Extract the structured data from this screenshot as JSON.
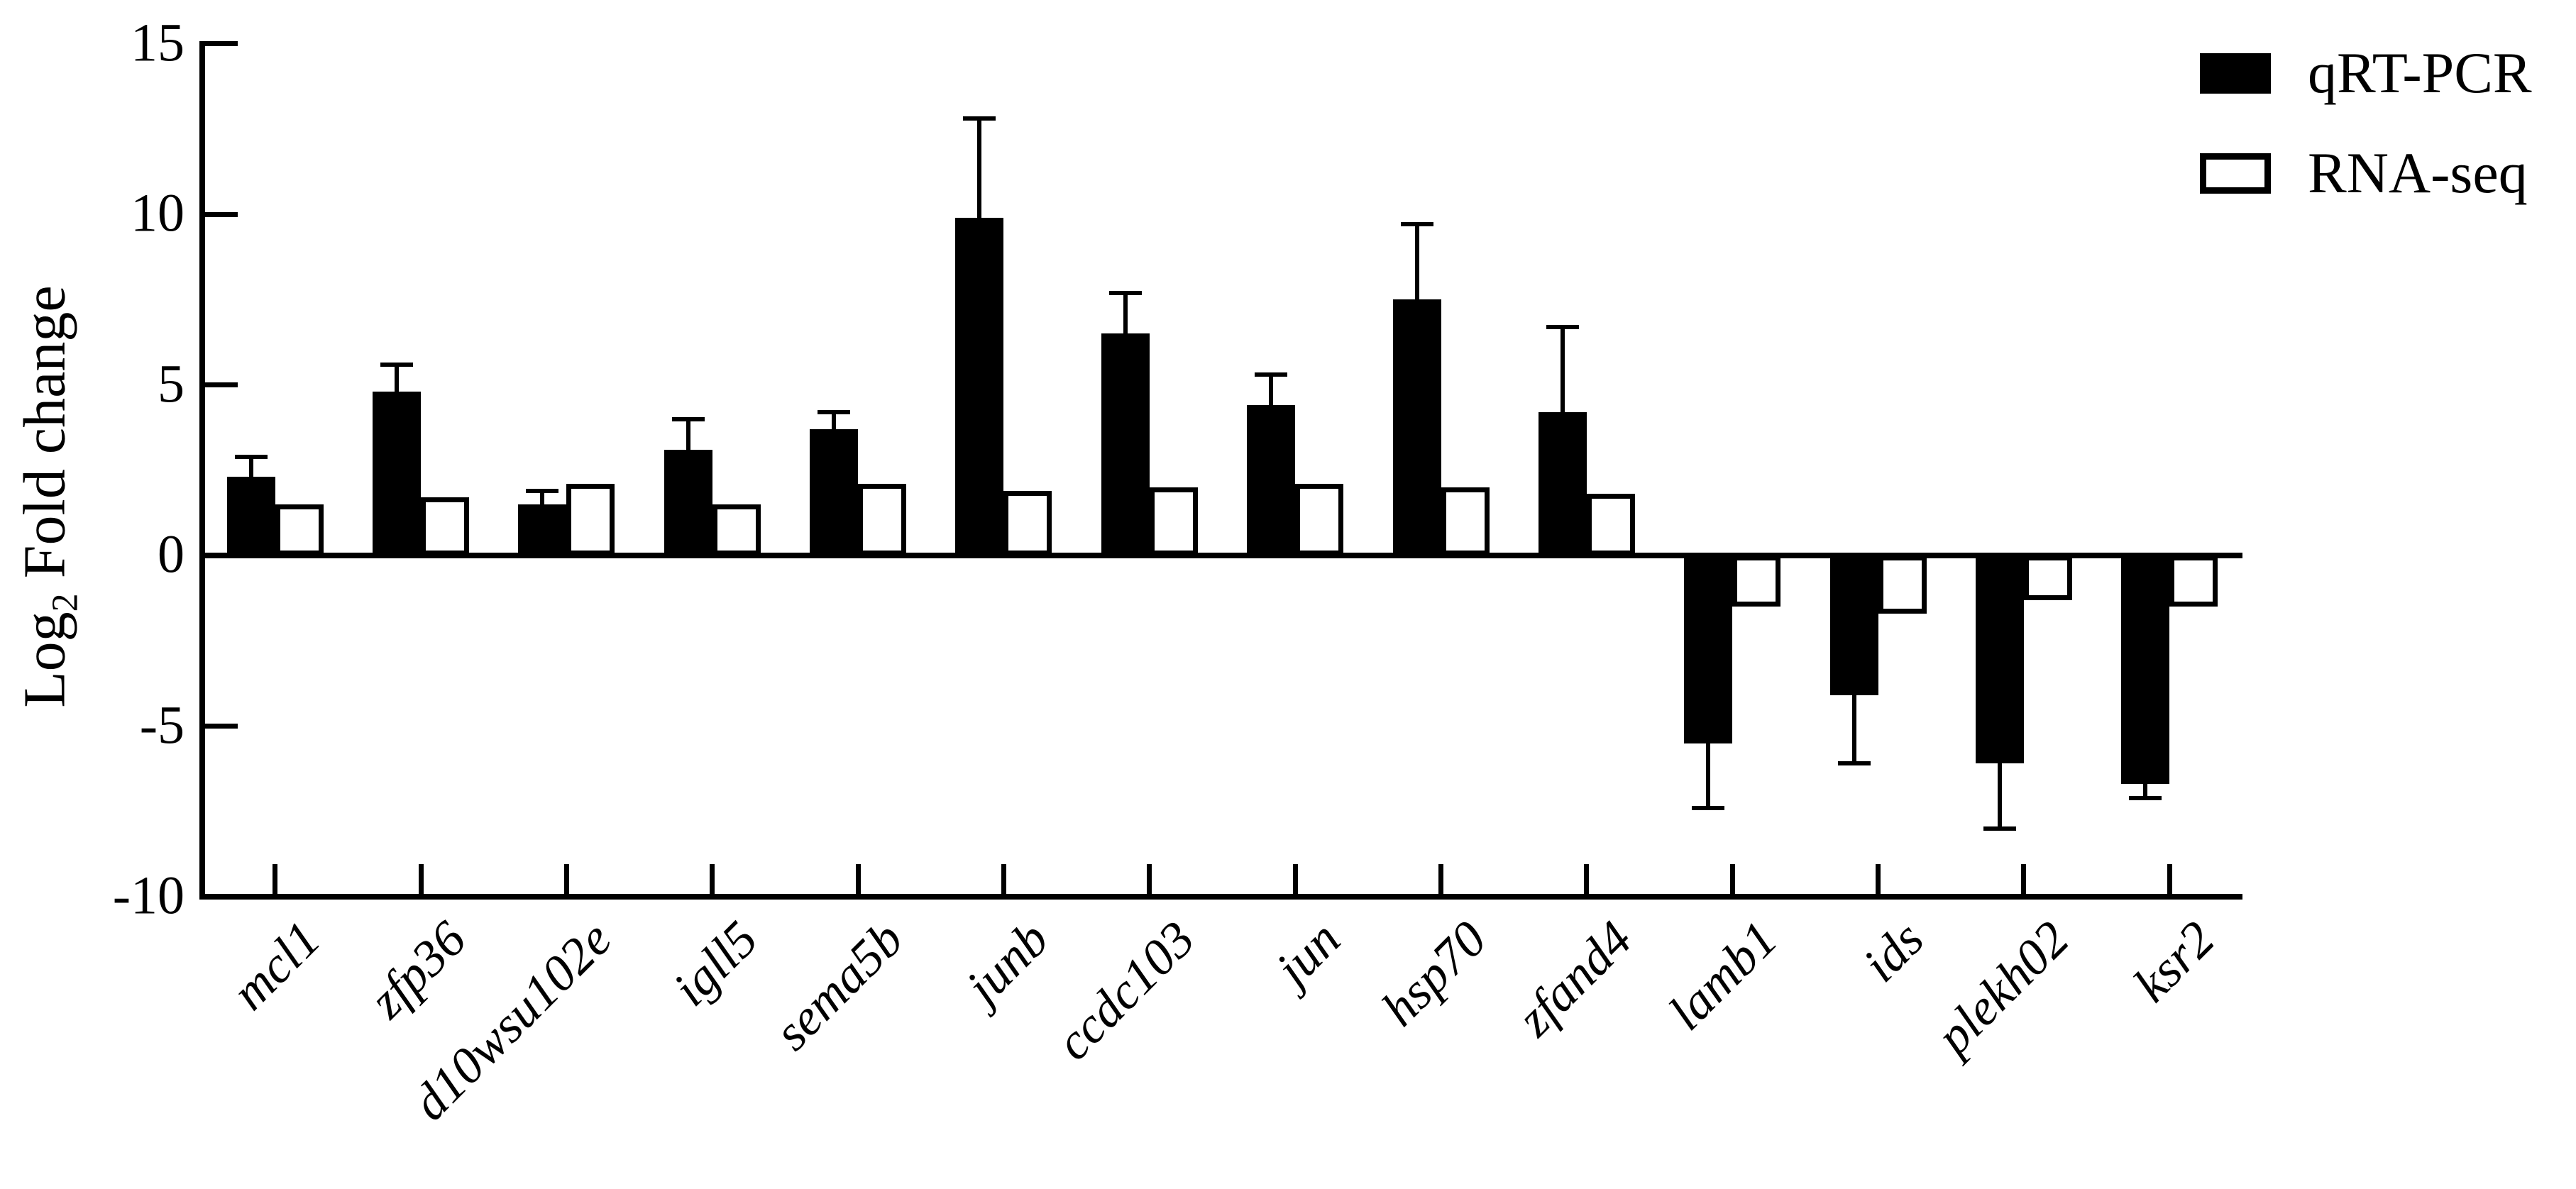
{
  "figure": {
    "background": "#ffffff",
    "ink_color": "#000000"
  },
  "y_axis": {
    "title_prefix": "Log",
    "title_sub": "2",
    "title_rest": " Fold change",
    "tick_labels": [
      "15",
      "10",
      "5",
      "0",
      "-5",
      "-10"
    ],
    "tick_values": [
      15,
      10,
      5,
      0,
      -5,
      -10
    ]
  },
  "legend": {
    "position": "top-right",
    "items": [
      {
        "label": "qRT-PCR",
        "swatch": "filled",
        "color": "#000000"
      },
      {
        "label": "RNA-seq",
        "swatch": "outline",
        "color": "#ffffff"
      }
    ]
  },
  "chart_data": {
    "type": "bar",
    "title": "",
    "xlabel": "",
    "ylabel": "Log2 Fold change",
    "ylim": [
      -10,
      15
    ],
    "grid": false,
    "legend_position": "top-right",
    "categories": [
      "mcl1",
      "zfp36",
      "d10wsu102e",
      "igll5",
      "sema5b",
      "junb",
      "ccdc103",
      "jun",
      "hsp70",
      "zfand4",
      "lamb1",
      "ids",
      "plekh02",
      "ksr2"
    ],
    "series": [
      {
        "name": "qRT-PCR",
        "style": "filled-black",
        "values": [
          2.3,
          4.8,
          1.5,
          3.1,
          3.7,
          9.9,
          6.5,
          4.4,
          7.5,
          4.2,
          -5.5,
          -4.1,
          -6.1,
          -6.7
        ],
        "errors": [
          0.6,
          0.8,
          0.4,
          0.9,
          0.5,
          2.9,
          1.2,
          0.9,
          2.2,
          2.5,
          1.9,
          2.0,
          1.9,
          0.4
        ]
      },
      {
        "name": "RNA-seq",
        "style": "outline-white",
        "values": [
          1.5,
          1.7,
          2.1,
          1.5,
          2.1,
          1.9,
          2.0,
          2.1,
          2.0,
          1.8,
          -1.5,
          -1.7,
          -1.3,
          -1.5
        ],
        "errors": null
      }
    ]
  }
}
